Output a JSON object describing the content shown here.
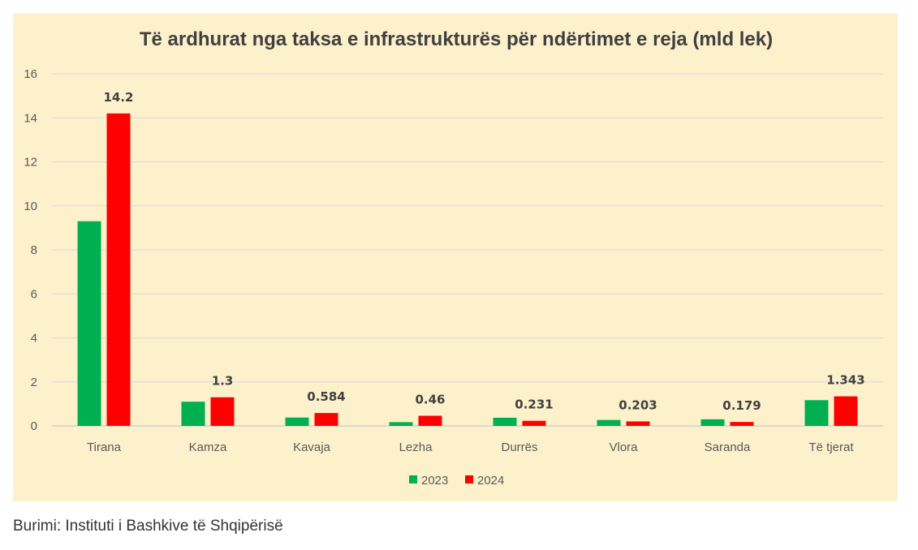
{
  "source": "Burimi: Instituti i Bashkive të Shqipërisë",
  "chart_data": {
    "type": "bar",
    "title": "Të ardhurat nga taksa e infrastrukturës për ndërtimet e reja (mld lek)",
    "xlabel": "",
    "ylabel": "",
    "ylim": [
      0,
      16
    ],
    "yticks": [
      "0",
      "2",
      "4",
      "6",
      "8",
      "10",
      "12",
      "14",
      "16"
    ],
    "grid": true,
    "legend_position": "bottom",
    "categories": [
      "Tirana",
      "Kamza",
      "Kavaja",
      "Lezha",
      "Durrës",
      "Vlora",
      "Saranda",
      "Të tjerat"
    ],
    "series": [
      {
        "name": "2023",
        "color": "#00b050",
        "values": [
          9.3,
          1.1,
          0.38,
          0.17,
          0.37,
          0.27,
          0.3,
          1.17
        ],
        "labels": [
          "",
          "",
          "",
          "",
          "",
          "",
          "",
          ""
        ]
      },
      {
        "name": "2024",
        "color": "#ff0000",
        "values": [
          14.2,
          1.3,
          0.584,
          0.46,
          0.231,
          0.203,
          0.179,
          1.343
        ],
        "labels": [
          "14.2",
          "1.3",
          "0.584",
          "0.46",
          "0.231",
          "0.203",
          "0.179",
          "1.343"
        ]
      }
    ]
  }
}
